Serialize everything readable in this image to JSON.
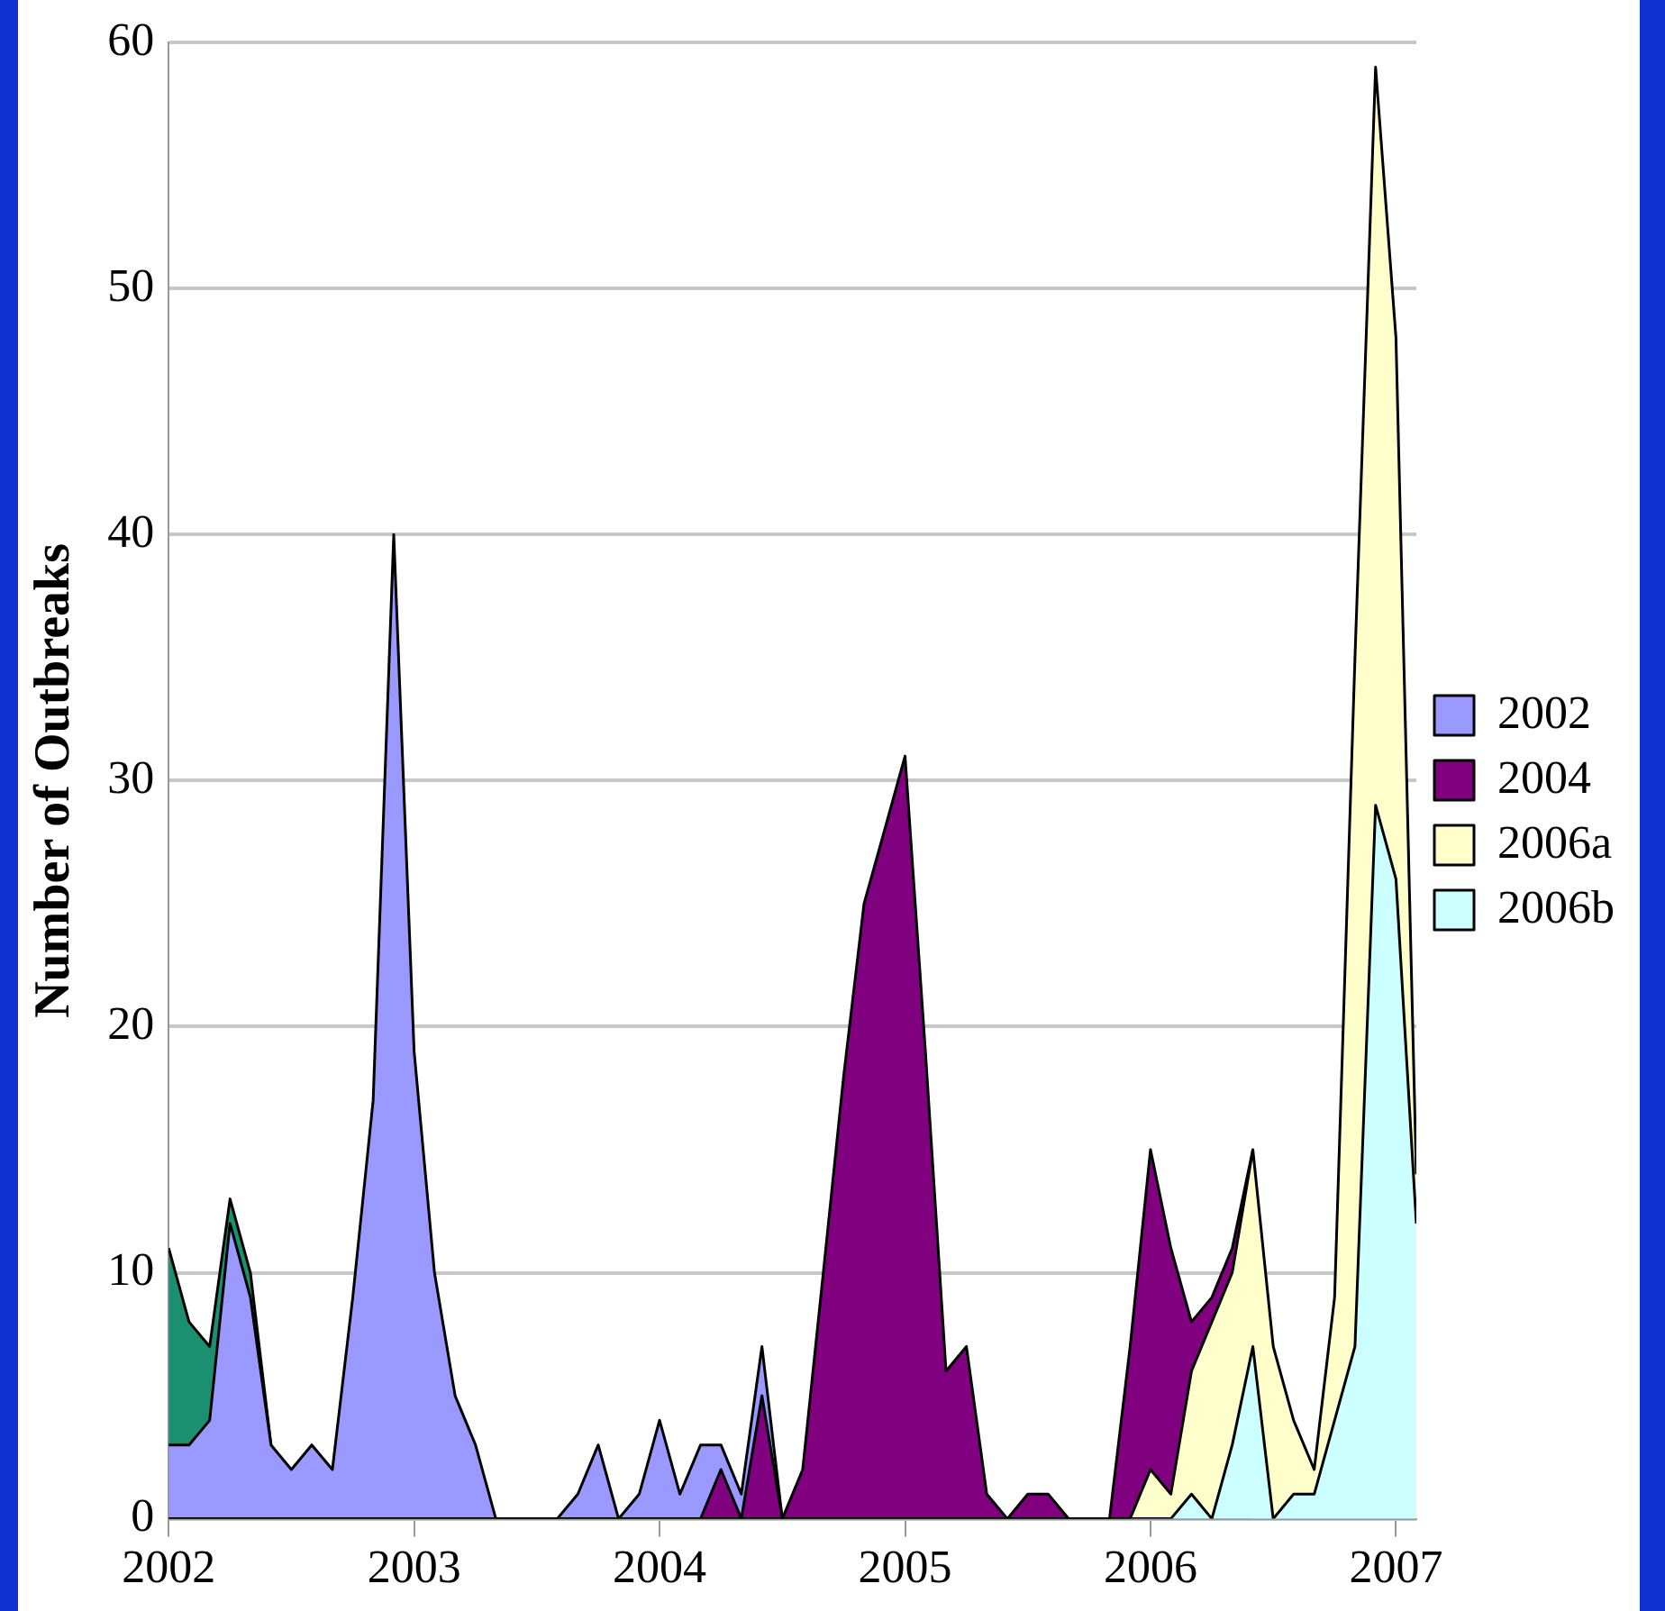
{
  "chart_data": {
    "type": "area",
    "ylabel": "Number of Outbreaks",
    "stacked": true,
    "x": [
      2002,
      2002.083,
      2002.167,
      2002.25,
      2002.333,
      2002.417,
      2002.5,
      2002.583,
      2002.667,
      2002.75,
      2002.833,
      2002.917,
      2003,
      2003.083,
      2003.167,
      2003.25,
      2003.333,
      2003.417,
      2003.5,
      2003.583,
      2003.667,
      2003.75,
      2003.833,
      2003.917,
      2004,
      2004.083,
      2004.167,
      2004.25,
      2004.333,
      2004.417,
      2004.5,
      2004.583,
      2004.667,
      2004.75,
      2004.833,
      2004.917,
      2005,
      2005.083,
      2005.167,
      2005.25,
      2005.333,
      2005.417,
      2005.5,
      2005.583,
      2005.667,
      2005.75,
      2005.833,
      2005.917,
      2006,
      2006.083,
      2006.167,
      2006.25,
      2006.333,
      2006.417,
      2006.5,
      2006.583,
      2006.667,
      2006.75,
      2006.833,
      2006.917,
      2007,
      2007.083
    ],
    "series": [
      {
        "name": "2006b",
        "color": "#ccffff",
        "values": [
          0,
          0,
          0,
          0,
          0,
          0,
          0,
          0,
          0,
          0,
          0,
          0,
          0,
          0,
          0,
          0,
          0,
          0,
          0,
          0,
          0,
          0,
          0,
          0,
          0,
          0,
          0,
          0,
          0,
          0,
          0,
          0,
          0,
          0,
          0,
          0,
          0,
          0,
          0,
          0,
          0,
          0,
          0,
          0,
          0,
          0,
          0,
          0,
          0,
          0,
          1,
          0,
          3,
          7,
          0,
          1,
          1,
          4,
          7,
          29,
          26,
          12
        ]
      },
      {
        "name": "2006a",
        "color": "#ffffcc",
        "values": [
          0,
          0,
          0,
          0,
          0,
          0,
          0,
          0,
          0,
          0,
          0,
          0,
          0,
          0,
          0,
          0,
          0,
          0,
          0,
          0,
          0,
          0,
          0,
          0,
          0,
          0,
          0,
          0,
          0,
          0,
          0,
          0,
          0,
          0,
          0,
          0,
          0,
          0,
          0,
          0,
          0,
          0,
          0,
          0,
          0,
          0,
          0,
          0,
          2,
          1,
          5,
          8,
          7,
          8,
          7,
          3,
          1,
          5,
          28,
          30,
          22,
          2
        ]
      },
      {
        "name": "2004",
        "color": "#800080",
        "values": [
          null,
          null,
          null,
          null,
          null,
          null,
          null,
          null,
          null,
          null,
          null,
          null,
          null,
          null,
          null,
          null,
          null,
          null,
          null,
          null,
          null,
          null,
          null,
          null,
          null,
          null,
          0,
          2,
          0,
          5,
          0,
          2,
          10,
          18,
          25,
          28,
          31,
          19,
          6,
          7,
          1,
          0,
          1,
          1,
          0,
          0,
          0,
          7,
          13,
          10,
          2,
          1,
          1,
          0,
          null,
          null,
          null,
          null,
          null,
          null,
          null,
          null
        ]
      },
      {
        "name": "2002",
        "color": "#9999ff",
        "values": [
          3,
          3,
          4,
          12,
          9,
          3,
          2,
          3,
          2,
          9,
          17,
          40,
          19,
          10,
          5,
          3,
          0,
          0,
          0,
          0,
          1,
          3,
          0,
          1,
          4,
          1,
          3,
          1,
          1,
          2,
          0,
          null,
          null,
          null,
          null,
          null,
          null,
          null,
          null,
          null,
          null,
          null,
          null,
          null,
          null,
          null,
          null,
          null,
          null,
          null,
          null,
          null,
          null,
          null,
          null,
          null,
          null,
          null,
          null,
          null,
          null,
          null
        ]
      },
      {
        "color": "#1a9070",
        "values": [
          8,
          5,
          3,
          1,
          1,
          0,
          null,
          null,
          null,
          null,
          null,
          null,
          null,
          null,
          null,
          null,
          null,
          null,
          null,
          null,
          null,
          null,
          null,
          null,
          null,
          null,
          null,
          null,
          null,
          null,
          null,
          null,
          null,
          null,
          null,
          null,
          null,
          null,
          null,
          null,
          null,
          null,
          null,
          null,
          null,
          null,
          null,
          null,
          null,
          null,
          null,
          null,
          null,
          null,
          null,
          null,
          null,
          null,
          null,
          null,
          null,
          null
        ]
      }
    ],
    "xlim": [
      2002,
      2007.083
    ],
    "xticks": [
      2002,
      2003,
      2004,
      2005,
      2006,
      2007
    ],
    "ylim": [
      0,
      60
    ],
    "yticks": [
      0,
      10,
      20,
      30,
      40,
      50,
      60
    ],
    "grid": "y",
    "legend": "right"
  }
}
